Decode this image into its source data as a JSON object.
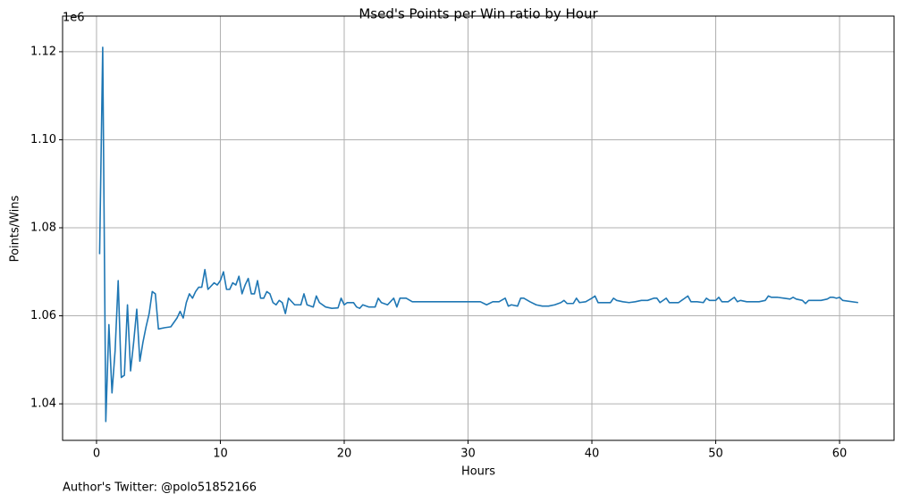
{
  "chart_data": {
    "type": "line",
    "title": "Msed's Points per Win ratio by Hour",
    "x_label": "Hours",
    "y_label": "Points/Wins",
    "y_offset_label": "1e6",
    "footer": "Author's Twitter: @polo51852166",
    "grid": true,
    "xlim": [
      -2.74,
      64.4
    ],
    "ylim": [
      1.0317,
      1.1281
    ],
    "xticks": [
      0,
      10,
      20,
      30,
      40,
      50,
      60
    ],
    "yticks": [
      1.04,
      1.06,
      1.08,
      {
        "value": 1.1,
        "label": "1.10"
      },
      1.12
    ],
    "x": [
      0.25,
      0.5,
      0.75,
      1.0,
      1.25,
      1.5,
      1.75,
      2.0,
      2.25,
      2.5,
      2.75,
      3.0,
      3.25,
      3.5,
      3.75,
      4.0,
      4.25,
      4.5,
      4.75,
      5.0,
      5.5,
      6.0,
      6.5,
      6.75,
      7.0,
      7.25,
      7.5,
      7.75,
      8.0,
      8.25,
      8.5,
      8.75,
      9.0,
      9.5,
      9.75,
      10.0,
      10.25,
      10.5,
      10.75,
      11.0,
      11.25,
      11.5,
      11.75,
      12.0,
      12.25,
      12.5,
      12.75,
      13.0,
      13.25,
      13.5,
      13.75,
      14.0,
      14.25,
      14.5,
      14.75,
      15.0,
      15.25,
      15.5,
      16.0,
      16.5,
      16.75,
      17.0,
      17.5,
      17.75,
      18.0,
      18.5,
      19.0,
      19.5,
      19.75,
      20.0,
      20.25,
      20.75,
      21.0,
      21.25,
      21.5,
      22.0,
      22.5,
      22.75,
      23.0,
      23.5,
      24.0,
      24.25,
      24.5,
      25.0,
      25.5,
      31.0,
      31.5,
      32.0,
      32.5,
      33.0,
      33.25,
      33.5,
      34.0,
      34.25,
      34.5,
      35.0,
      35.5,
      36.0,
      36.5,
      37.0,
      37.5,
      37.75,
      38.0,
      38.5,
      38.75,
      39.0,
      39.5,
      40.0,
      40.25,
      40.5,
      41.0,
      41.5,
      41.75,
      42.0,
      42.5,
      43.0,
      43.5,
      44.0,
      44.5,
      45.0,
      45.25,
      45.5,
      46.0,
      46.25,
      47.0,
      47.5,
      47.75,
      48.0,
      48.5,
      49.0,
      49.25,
      49.5,
      50.0,
      50.25,
      50.5,
      51.0,
      51.5,
      51.75,
      52.0,
      52.5,
      53.0,
      53.5,
      54.0,
      54.25,
      54.5,
      55.0,
      55.5,
      56.0,
      56.25,
      56.5,
      57.0,
      57.25,
      57.5,
      58.0,
      58.5,
      59.0,
      59.25,
      59.5,
      59.75,
      60.0,
      60.25,
      61.5
    ],
    "series": [
      {
        "color": "#1f77b4",
        "values": [
          1.074,
          1.121,
          1.036,
          1.058,
          1.0425,
          1.052,
          1.068,
          1.046,
          1.0465,
          1.0625,
          1.0475,
          1.054,
          1.0615,
          1.0497,
          1.054,
          1.0575,
          1.0605,
          1.0655,
          1.065,
          1.057,
          1.0573,
          1.0575,
          1.0595,
          1.061,
          1.0595,
          1.063,
          1.065,
          1.064,
          1.0655,
          1.0665,
          1.0665,
          1.0705,
          1.066,
          1.0675,
          1.067,
          1.068,
          1.07,
          1.066,
          1.066,
          1.0675,
          1.067,
          1.069,
          1.065,
          1.067,
          1.0685,
          1.065,
          1.065,
          1.068,
          1.064,
          1.064,
          1.0655,
          1.065,
          1.063,
          1.0625,
          1.0635,
          1.063,
          1.0605,
          1.064,
          1.0625,
          1.0625,
          1.065,
          1.0625,
          1.062,
          1.0645,
          1.063,
          1.062,
          1.0617,
          1.0618,
          1.064,
          1.0625,
          1.063,
          1.063,
          1.062,
          1.0617,
          1.0625,
          1.062,
          1.062,
          1.064,
          1.063,
          1.0625,
          1.064,
          1.062,
          1.064,
          1.064,
          1.0632,
          1.0632,
          1.0625,
          1.0632,
          1.0632,
          1.064,
          1.0622,
          1.0625,
          1.0622,
          1.064,
          1.064,
          1.0632,
          1.0625,
          1.0622,
          1.0622,
          1.0625,
          1.063,
          1.0635,
          1.0628,
          1.0628,
          1.064,
          1.063,
          1.0632,
          1.064,
          1.0645,
          1.063,
          1.063,
          1.063,
          1.064,
          1.0635,
          1.0632,
          1.063,
          1.0632,
          1.0635,
          1.0635,
          1.064,
          1.064,
          1.063,
          1.064,
          1.063,
          1.063,
          1.064,
          1.0645,
          1.0632,
          1.0632,
          1.063,
          1.064,
          1.0635,
          1.0635,
          1.0642,
          1.0632,
          1.0632,
          1.0642,
          1.0632,
          1.0635,
          1.0632,
          1.0632,
          1.0632,
          1.0635,
          1.0645,
          1.0642,
          1.0642,
          1.064,
          1.0638,
          1.0642,
          1.0638,
          1.0635,
          1.0628,
          1.0635,
          1.0635,
          1.0635,
          1.0638,
          1.0642,
          1.0642,
          1.064,
          1.0642,
          1.0635,
          1.063
        ]
      }
    ]
  }
}
